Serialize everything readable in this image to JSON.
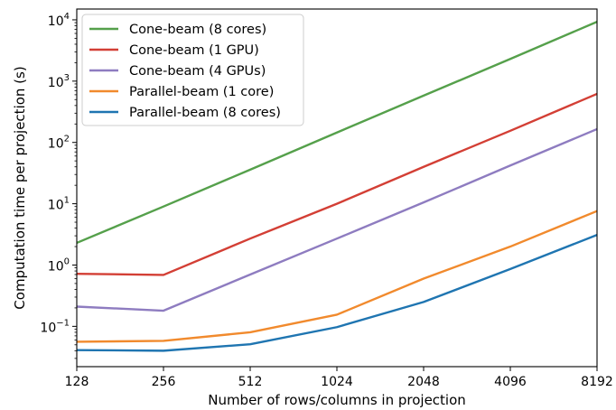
{
  "chart_data": {
    "type": "line",
    "title": "",
    "xlabel": "Number of rows/columns in projection",
    "ylabel": "Computation time per projection (s)",
    "x": [
      128,
      256,
      512,
      1024,
      2048,
      4096,
      8192
    ],
    "x_tick_labels": [
      "128",
      "256",
      "512",
      "1024",
      "2048",
      "4096",
      "8192"
    ],
    "x_scale": "log2",
    "y_scale": "log10",
    "ylim": [
      0.022,
      15000
    ],
    "y_ticks": [
      {
        "value": 0.1,
        "base": "10",
        "exp": "−1"
      },
      {
        "value": 1,
        "base": "10",
        "exp": "0"
      },
      {
        "value": 10,
        "base": "10",
        "exp": "1"
      },
      {
        "value": 100,
        "base": "10",
        "exp": "2"
      },
      {
        "value": 1000,
        "base": "10",
        "exp": "3"
      },
      {
        "value": 10000,
        "base": "10",
        "exp": "4"
      }
    ],
    "legend_position": "top-left",
    "series": [
      {
        "name": "Cone-beam (8 cores)",
        "color": "#55a04b",
        "values": [
          2.3,
          9.0,
          36,
          145,
          580,
          2300,
          9300
        ]
      },
      {
        "name": "Cone-beam (1 GPU)",
        "color": "#d33f35",
        "values": [
          0.72,
          0.69,
          2.7,
          10,
          40,
          155,
          620
        ]
      },
      {
        "name": "Cone-beam (4 GPUs)",
        "color": "#8e7cc0",
        "values": [
          0.21,
          0.18,
          0.7,
          2.7,
          10.5,
          42,
          165
        ]
      },
      {
        "name": "Parallel-beam (1 core)",
        "color": "#f18a2d",
        "values": [
          0.056,
          0.058,
          0.08,
          0.155,
          0.6,
          2.0,
          7.6
        ]
      },
      {
        "name": "Parallel-beam (8 cores)",
        "color": "#1f75b1",
        "values": [
          0.041,
          0.04,
          0.051,
          0.097,
          0.25,
          0.86,
          3.1
        ]
      }
    ]
  }
}
